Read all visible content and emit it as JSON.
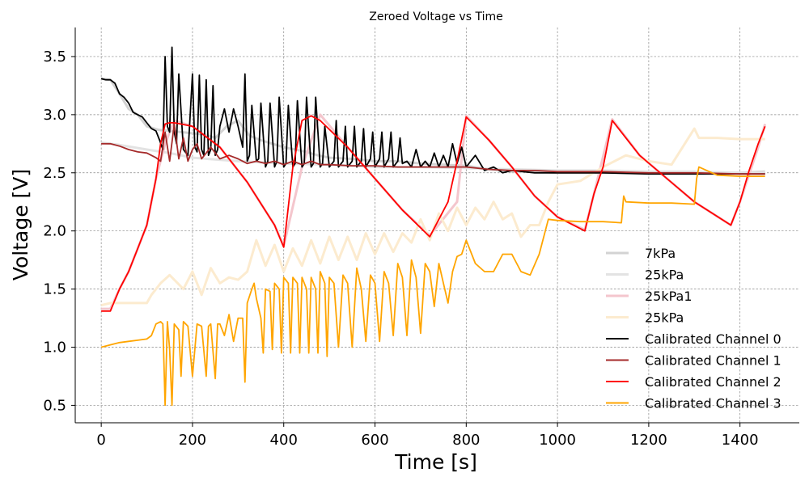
{
  "chart_data": {
    "type": "line",
    "title": "Zeroed Voltage vs Time",
    "xlabel": "Time [s]",
    "ylabel": "Voltage [V]",
    "xlim": [
      -57,
      1530
    ],
    "ylim": [
      0.35,
      3.75
    ],
    "xticks": [
      0,
      200,
      400,
      600,
      800,
      1000,
      1200,
      1400
    ],
    "yticks": [
      0.5,
      1.0,
      1.5,
      2.0,
      2.5,
      3.0,
      3.5
    ],
    "grid": true,
    "legend_position": "lower right",
    "series": [
      {
        "name": "7kPa",
        "color": "#d3d3d3",
        "faint": true,
        "x": [
          0,
          20,
          40,
          60,
          80,
          100,
          125,
          150,
          175,
          200,
          225,
          250,
          275,
          300,
          325,
          350,
          375,
          400,
          425,
          450,
          475,
          500,
          550,
          600,
          650,
          700,
          750,
          800,
          850,
          900,
          950,
          1000,
          1100,
          1200,
          1300,
          1400,
          1455
        ],
        "y": [
          3.31,
          3.3,
          3.18,
          3.05,
          3.0,
          2.9,
          2.87,
          2.86,
          2.85,
          2.84,
          2.83,
          2.8,
          2.9,
          2.95,
          2.82,
          2.78,
          2.75,
          2.72,
          2.7,
          2.68,
          2.65,
          2.63,
          2.62,
          2.6,
          2.6,
          2.58,
          2.57,
          2.56,
          2.53,
          2.51,
          2.51,
          2.5,
          2.5,
          2.5,
          2.5,
          2.5,
          2.51
        ]
      },
      {
        "name": "25kPa",
        "color": "#e3e3e3",
        "faint": true,
        "x": [
          0,
          40,
          100,
          150,
          200,
          300,
          400,
          500,
          600,
          700,
          800,
          900,
          1000,
          1100,
          1200,
          1300,
          1400,
          1455
        ],
        "y": [
          2.76,
          2.74,
          2.7,
          2.67,
          2.63,
          2.6,
          2.58,
          2.57,
          2.55,
          2.55,
          2.54,
          2.53,
          2.52,
          2.52,
          2.51,
          2.51,
          2.5,
          2.5
        ]
      },
      {
        "name": "25kPa1",
        "color": "#f4c6cd",
        "faint": true,
        "x": [
          0,
          20,
          40,
          60,
          80,
          100,
          120,
          140,
          160,
          200,
          260,
          320,
          380,
          400,
          440,
          480,
          540,
          600,
          660,
          720,
          780,
          800,
          850,
          900,
          950,
          1000,
          1060,
          1080,
          1120,
          1180,
          1240,
          1300,
          1380,
          1400,
          1440,
          1455
        ],
        "y": [
          1.33,
          1.33,
          1.5,
          1.65,
          1.85,
          2.05,
          2.45,
          2.75,
          2.95,
          2.9,
          2.72,
          2.42,
          2.05,
          1.87,
          2.55,
          3.0,
          2.72,
          2.45,
          2.18,
          1.96,
          2.25,
          2.99,
          2.78,
          2.55,
          2.3,
          2.12,
          2.01,
          2.32,
          2.96,
          2.65,
          2.45,
          2.25,
          2.05,
          2.25,
          2.72,
          2.92
        ]
      },
      {
        "name": "25kPa",
        "color": "#fcebcf",
        "faint": true,
        "x": [
          0,
          20,
          40,
          80,
          100,
          110,
          130,
          150,
          180,
          200,
          220,
          240,
          260,
          280,
          300,
          320,
          340,
          360,
          380,
          400,
          420,
          440,
          460,
          480,
          500,
          520,
          540,
          560,
          580,
          600,
          620,
          640,
          660,
          680,
          700,
          720,
          740,
          760,
          780,
          800,
          820,
          840,
          860,
          880,
          900,
          920,
          940,
          960,
          980,
          1000,
          1050,
          1100,
          1150,
          1200,
          1250,
          1300,
          1310,
          1350,
          1400,
          1440,
          1455
        ],
        "y": [
          1.36,
          1.38,
          1.38,
          1.38,
          1.38,
          1.45,
          1.55,
          1.62,
          1.5,
          1.65,
          1.45,
          1.68,
          1.55,
          1.6,
          1.58,
          1.65,
          1.92,
          1.7,
          1.88,
          1.65,
          1.85,
          1.7,
          1.92,
          1.72,
          1.95,
          1.75,
          1.95,
          1.75,
          1.98,
          1.8,
          1.98,
          1.82,
          1.98,
          1.9,
          2.1,
          1.92,
          2.15,
          2.0,
          2.2,
          2.05,
          2.2,
          2.1,
          2.25,
          2.1,
          2.15,
          1.95,
          2.05,
          2.05,
          2.25,
          2.4,
          2.43,
          2.55,
          2.65,
          2.6,
          2.57,
          2.88,
          2.8,
          2.8,
          2.79,
          2.79,
          2.79
        ]
      },
      {
        "name": "Calibrated Channel 0",
        "color": "#000000",
        "faint": false,
        "x": [
          0,
          10,
          20,
          30,
          40,
          50,
          60,
          70,
          80,
          90,
          100,
          110,
          120,
          128,
          135,
          140,
          145,
          150,
          155,
          160,
          165,
          170,
          180,
          190,
          200,
          205,
          210,
          215,
          220,
          225,
          230,
          235,
          240,
          245,
          250,
          255,
          260,
          270,
          280,
          290,
          300,
          310,
          315,
          320,
          325,
          330,
          340,
          345,
          350,
          360,
          365,
          370,
          380,
          385,
          390,
          400,
          405,
          410,
          420,
          425,
          430,
          440,
          445,
          450,
          460,
          465,
          470,
          480,
          485,
          490,
          500,
          510,
          515,
          520,
          530,
          535,
          540,
          550,
          555,
          560,
          570,
          575,
          580,
          590,
          595,
          600,
          610,
          615,
          620,
          630,
          635,
          640,
          650,
          655,
          660,
          670,
          680,
          690,
          700,
          710,
          720,
          730,
          740,
          750,
          760,
          770,
          780,
          790,
          800,
          820,
          840,
          860,
          880,
          900,
          950,
          1000,
          1100,
          1200,
          1300,
          1400,
          1455
        ],
        "y": [
          3.31,
          3.3,
          3.3,
          3.27,
          3.18,
          3.15,
          3.1,
          3.02,
          3.0,
          2.98,
          2.93,
          2.88,
          2.86,
          2.78,
          2.7,
          3.5,
          2.9,
          2.85,
          3.58,
          2.85,
          2.75,
          3.35,
          2.7,
          2.65,
          3.35,
          2.72,
          2.68,
          3.34,
          2.7,
          2.65,
          3.3,
          2.65,
          2.7,
          3.25,
          2.65,
          2.7,
          2.9,
          3.05,
          2.85,
          3.05,
          2.9,
          2.72,
          3.35,
          2.6,
          2.65,
          3.08,
          2.6,
          2.62,
          3.1,
          2.55,
          2.6,
          3.1,
          2.55,
          2.6,
          3.15,
          2.55,
          2.58,
          3.08,
          2.55,
          2.58,
          3.12,
          2.55,
          2.58,
          3.15,
          2.55,
          2.58,
          3.15,
          2.55,
          2.58,
          2.9,
          2.55,
          2.6,
          2.95,
          2.55,
          2.6,
          2.9,
          2.55,
          2.6,
          2.9,
          2.55,
          2.6,
          2.88,
          2.55,
          2.62,
          2.85,
          2.55,
          2.62,
          2.85,
          2.55,
          2.62,
          2.85,
          2.55,
          2.6,
          2.8,
          2.58,
          2.6,
          2.55,
          2.7,
          2.55,
          2.6,
          2.55,
          2.67,
          2.55,
          2.65,
          2.55,
          2.75,
          2.58,
          2.72,
          2.55,
          2.65,
          2.52,
          2.55,
          2.5,
          2.52,
          2.5,
          2.5,
          2.5,
          2.49,
          2.49,
          2.49,
          2.49
        ]
      },
      {
        "name": "Calibrated Channel 1",
        "color": "#a52a2a",
        "faint": false,
        "x": [
          0,
          20,
          40,
          60,
          80,
          100,
          120,
          130,
          140,
          150,
          160,
          170,
          180,
          190,
          200,
          210,
          220,
          240,
          260,
          280,
          300,
          320,
          340,
          360,
          380,
          400,
          420,
          440,
          460,
          480,
          500,
          550,
          600,
          650,
          700,
          750,
          800,
          850,
          900,
          950,
          1000,
          1100,
          1200,
          1300,
          1400,
          1455
        ],
        "y": [
          2.75,
          2.75,
          2.73,
          2.7,
          2.68,
          2.67,
          2.63,
          2.6,
          2.85,
          2.6,
          2.92,
          2.62,
          2.8,
          2.6,
          2.7,
          2.75,
          2.62,
          2.72,
          2.62,
          2.65,
          2.62,
          2.58,
          2.6,
          2.58,
          2.6,
          2.57,
          2.6,
          2.57,
          2.6,
          2.57,
          2.57,
          2.56,
          2.56,
          2.55,
          2.55,
          2.55,
          2.55,
          2.53,
          2.52,
          2.52,
          2.51,
          2.51,
          2.5,
          2.5,
          2.49,
          2.49
        ]
      },
      {
        "name": "Calibrated Channel 2",
        "color": "#ff0000",
        "faint": false,
        "x": [
          0,
          20,
          40,
          60,
          80,
          100,
          120,
          130,
          140,
          150,
          160,
          200,
          260,
          320,
          380,
          400,
          420,
          440,
          460,
          480,
          540,
          600,
          660,
          720,
          760,
          780,
          800,
          850,
          900,
          950,
          1000,
          1060,
          1080,
          1100,
          1120,
          1180,
          1240,
          1300,
          1380,
          1400,
          1420,
          1440,
          1455
        ],
        "y": [
          1.31,
          1.31,
          1.5,
          1.65,
          1.85,
          2.05,
          2.45,
          2.75,
          2.92,
          2.93,
          2.93,
          2.9,
          2.72,
          2.42,
          2.05,
          1.86,
          2.55,
          2.95,
          2.99,
          2.95,
          2.72,
          2.45,
          2.18,
          1.95,
          2.25,
          2.6,
          2.98,
          2.78,
          2.55,
          2.3,
          2.12,
          2.0,
          2.32,
          2.55,
          2.95,
          2.65,
          2.45,
          2.25,
          2.05,
          2.25,
          2.52,
          2.75,
          2.9
        ]
      },
      {
        "name": "Calibrated Channel 3",
        "color": "#ffa500",
        "faint": false,
        "x": [
          0,
          20,
          40,
          60,
          80,
          100,
          110,
          120,
          130,
          135,
          140,
          145,
          150,
          155,
          160,
          170,
          175,
          180,
          190,
          200,
          210,
          220,
          230,
          235,
          240,
          250,
          255,
          260,
          270,
          280,
          290,
          300,
          310,
          315,
          320,
          330,
          335,
          340,
          350,
          355,
          360,
          370,
          375,
          380,
          390,
          395,
          400,
          410,
          415,
          420,
          430,
          435,
          440,
          450,
          455,
          460,
          470,
          475,
          480,
          490,
          495,
          500,
          510,
          520,
          530,
          540,
          550,
          560,
          570,
          580,
          590,
          600,
          610,
          620,
          630,
          640,
          650,
          660,
          670,
          680,
          690,
          700,
          710,
          720,
          730,
          740,
          750,
          760,
          770,
          780,
          790,
          800,
          820,
          840,
          860,
          880,
          900,
          920,
          940,
          960,
          980,
          1000,
          1050,
          1100,
          1140,
          1145,
          1150,
          1200,
          1250,
          1300,
          1305,
          1310,
          1350,
          1400,
          1455
        ],
        "y": [
          1.0,
          1.02,
          1.04,
          1.05,
          1.06,
          1.07,
          1.1,
          1.2,
          1.22,
          1.2,
          0.5,
          1.22,
          0.98,
          0.5,
          1.2,
          1.15,
          0.75,
          1.22,
          1.18,
          0.75,
          1.2,
          1.18,
          0.75,
          1.18,
          1.2,
          0.73,
          1.2,
          1.2,
          1.1,
          1.28,
          1.05,
          1.25,
          1.25,
          0.7,
          1.38,
          1.5,
          1.55,
          1.42,
          1.25,
          0.95,
          1.5,
          1.48,
          0.98,
          1.55,
          1.5,
          0.95,
          1.6,
          1.55,
          0.95,
          1.6,
          1.55,
          0.95,
          1.6,
          1.5,
          0.95,
          1.6,
          1.5,
          0.95,
          1.65,
          1.55,
          0.92,
          1.6,
          1.55,
          1.0,
          1.62,
          1.55,
          1.0,
          1.68,
          1.5,
          1.05,
          1.62,
          1.55,
          1.05,
          1.65,
          1.55,
          1.1,
          1.72,
          1.6,
          1.1,
          1.75,
          1.6,
          1.12,
          1.72,
          1.65,
          1.35,
          1.72,
          1.55,
          1.38,
          1.65,
          1.78,
          1.8,
          1.92,
          1.72,
          1.65,
          1.65,
          1.8,
          1.8,
          1.65,
          1.62,
          1.8,
          2.1,
          2.09,
          2.08,
          2.08,
          2.07,
          2.3,
          2.25,
          2.24,
          2.24,
          2.23,
          2.45,
          2.55,
          2.48,
          2.47,
          2.47
        ]
      }
    ]
  }
}
